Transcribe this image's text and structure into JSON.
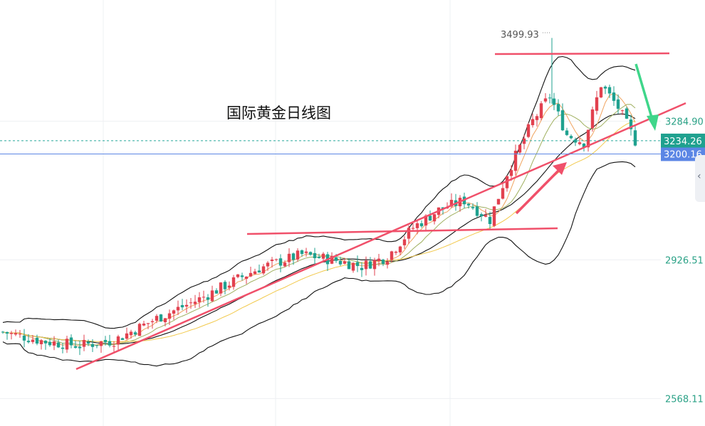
{
  "chart_data": {
    "type": "candlestick",
    "title": "国际黄金日线图",
    "grid": true,
    "price_axis": {
      "ticks": [
        "3284.90",
        "2926.51",
        "2568.11"
      ],
      "tick_values": [
        3284.9,
        2926.51,
        2568.11
      ]
    },
    "ylim": [
      2497,
      3598
    ],
    "markers": {
      "high_label": "3499.93",
      "high_value": 3499.93,
      "current_price": "3234.26",
      "current_value": 3234.26,
      "line_price": "3200.16",
      "line_value": 3200.16
    },
    "colors": {
      "up": "#e2414f",
      "down": "#1fa18f",
      "trend": "#f0506a",
      "bb": "#111111",
      "ma_short": "#f0a35e",
      "ma_mid": "#a0b060",
      "ma_long": "#f2c94c",
      "arrow_up": "#f0506a",
      "arrow_down": "#3fd68a",
      "current_bg": "#1fa18f",
      "line_bg": "#5b86e5"
    }
  },
  "side_tab": {
    "icon": "chevron-left-icon",
    "glyph": "‹"
  }
}
